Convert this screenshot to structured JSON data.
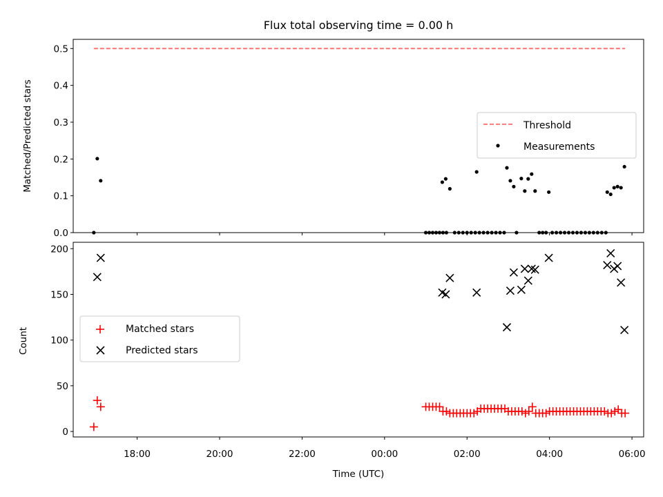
{
  "figure": {
    "title": "Flux total observing time = 0.00 h",
    "xlabel": "Time (UTC)"
  },
  "chart_data": [
    {
      "type": "scatter",
      "ylabel": "Matched/Predicted stars",
      "ylim": [
        0,
        0.525
      ],
      "yticks": [
        0.0,
        0.1,
        0.2,
        0.3,
        0.4,
        0.5
      ],
      "ytick_labels": [
        "0.0",
        "0.1",
        "0.2",
        "0.3",
        "0.4",
        "0.5"
      ],
      "legend_position": "center-right",
      "threshold": {
        "name": "Threshold",
        "value": 0.5,
        "x_start": "16:57",
        "x_end": "05:50",
        "color": "#ff6b6b",
        "style": "dashed"
      },
      "series": [
        {
          "name": "Measurements",
          "color": "#000000",
          "marker": "dot",
          "points": [
            [
              "16:57",
              0.0
            ],
            [
              "17:02",
              0.201
            ],
            [
              "17:07",
              0.141
            ],
            [
              "01:00",
              0.0
            ],
            [
              "01:05",
              0.0
            ],
            [
              "01:10",
              0.0
            ],
            [
              "01:15",
              0.0
            ],
            [
              "01:20",
              0.0
            ],
            [
              "01:25",
              0.0
            ],
            [
              "01:30",
              0.0
            ],
            [
              "01:24",
              0.137
            ],
            [
              "01:29",
              0.146
            ],
            [
              "01:35",
              0.119
            ],
            [
              "01:42",
              0.0
            ],
            [
              "01:48",
              0.0
            ],
            [
              "01:54",
              0.0
            ],
            [
              "02:00",
              0.0
            ],
            [
              "02:06",
              0.0
            ],
            [
              "02:12",
              0.0
            ],
            [
              "02:18",
              0.0
            ],
            [
              "02:14",
              0.165
            ],
            [
              "02:24",
              0.0
            ],
            [
              "02:30",
              0.0
            ],
            [
              "02:36",
              0.0
            ],
            [
              "02:42",
              0.0
            ],
            [
              "02:48",
              0.0
            ],
            [
              "02:54",
              0.0
            ],
            [
              "02:58",
              0.176
            ],
            [
              "03:03",
              0.141
            ],
            [
              "03:08",
              0.125
            ],
            [
              "03:12",
              0.0
            ],
            [
              "03:19",
              0.147
            ],
            [
              "03:24",
              0.113
            ],
            [
              "03:29",
              0.146
            ],
            [
              "03:34",
              0.159
            ],
            [
              "03:39",
              0.113
            ],
            [
              "03:45",
              0.0
            ],
            [
              "03:50",
              0.0
            ],
            [
              "03:55",
              0.0
            ],
            [
              "03:59",
              0.11
            ],
            [
              "04:04",
              0.0
            ],
            [
              "04:10",
              0.0
            ],
            [
              "04:16",
              0.0
            ],
            [
              "04:22",
              0.0
            ],
            [
              "04:28",
              0.0
            ],
            [
              "04:34",
              0.0
            ],
            [
              "04:40",
              0.0
            ],
            [
              "04:46",
              0.0
            ],
            [
              "04:52",
              0.0
            ],
            [
              "04:58",
              0.0
            ],
            [
              "05:04",
              0.0
            ],
            [
              "05:10",
              0.0
            ],
            [
              "05:16",
              0.0
            ],
            [
              "05:22",
              0.0
            ],
            [
              "05:24",
              0.11
            ],
            [
              "05:29",
              0.104
            ],
            [
              "05:34",
              0.122
            ],
            [
              "05:39",
              0.125
            ],
            [
              "05:44",
              0.122
            ],
            [
              "05:49",
              0.179
            ]
          ]
        }
      ]
    },
    {
      "type": "scatter",
      "ylabel": "Count",
      "ylim": [
        -6,
        207
      ],
      "yticks": [
        0,
        50,
        100,
        150,
        200
      ],
      "ytick_labels": [
        "0",
        "50",
        "100",
        "150",
        "200"
      ],
      "xlim": [
        "16:27",
        "06:17"
      ],
      "xticks": [
        "18:00",
        "20:00",
        "22:00",
        "00:00",
        "02:00",
        "04:00",
        "06:00"
      ],
      "legend_position": "center-left",
      "series": [
        {
          "name": "Matched stars",
          "color": "#ff0000",
          "marker": "plus",
          "points": [
            [
              "16:57",
              5
            ],
            [
              "17:02",
              34
            ],
            [
              "17:07",
              27
            ],
            [
              "01:00",
              27
            ],
            [
              "01:05",
              27
            ],
            [
              "01:10",
              27
            ],
            [
              "01:15",
              27
            ],
            [
              "01:20",
              27
            ],
            [
              "01:25",
              22
            ],
            [
              "01:30",
              22
            ],
            [
              "01:35",
              20
            ],
            [
              "01:40",
              20
            ],
            [
              "01:45",
              20
            ],
            [
              "01:50",
              20
            ],
            [
              "01:55",
              20
            ],
            [
              "02:00",
              20
            ],
            [
              "02:05",
              20
            ],
            [
              "02:10",
              20
            ],
            [
              "02:15",
              22
            ],
            [
              "02:20",
              25
            ],
            [
              "02:25",
              25
            ],
            [
              "02:30",
              25
            ],
            [
              "02:35",
              25
            ],
            [
              "02:40",
              25
            ],
            [
              "02:45",
              25
            ],
            [
              "02:50",
              25
            ],
            [
              "02:55",
              25
            ],
            [
              "03:00",
              22
            ],
            [
              "03:05",
              22
            ],
            [
              "03:10",
              22
            ],
            [
              "03:15",
              22
            ],
            [
              "03:20",
              22
            ],
            [
              "03:25",
              20
            ],
            [
              "03:30",
              22
            ],
            [
              "03:35",
              27
            ],
            [
              "03:40",
              20
            ],
            [
              "03:45",
              20
            ],
            [
              "03:50",
              20
            ],
            [
              "03:55",
              20
            ],
            [
              "04:00",
              22
            ],
            [
              "04:05",
              22
            ],
            [
              "04:10",
              22
            ],
            [
              "04:15",
              22
            ],
            [
              "04:20",
              22
            ],
            [
              "04:25",
              22
            ],
            [
              "04:30",
              22
            ],
            [
              "04:35",
              22
            ],
            [
              "04:40",
              22
            ],
            [
              "04:45",
              22
            ],
            [
              "04:50",
              22
            ],
            [
              "04:55",
              22
            ],
            [
              "05:00",
              22
            ],
            [
              "05:05",
              22
            ],
            [
              "05:10",
              22
            ],
            [
              "05:15",
              22
            ],
            [
              "05:20",
              22
            ],
            [
              "05:25",
              20
            ],
            [
              "05:30",
              20
            ],
            [
              "05:35",
              22
            ],
            [
              "05:40",
              24
            ],
            [
              "05:45",
              20
            ],
            [
              "05:50",
              20
            ]
          ]
        },
        {
          "name": "Predicted stars",
          "color": "#000000",
          "marker": "x",
          "points": [
            [
              "17:02",
              169
            ],
            [
              "17:07",
              190
            ],
            [
              "01:24",
              152
            ],
            [
              "01:29",
              150
            ],
            [
              "01:35",
              168
            ],
            [
              "02:14",
              152
            ],
            [
              "02:58",
              114
            ],
            [
              "03:03",
              154
            ],
            [
              "03:08",
              174
            ],
            [
              "03:19",
              155
            ],
            [
              "03:24",
              178
            ],
            [
              "03:29",
              165
            ],
            [
              "03:34",
              178
            ],
            [
              "03:39",
              177
            ],
            [
              "03:59",
              190
            ],
            [
              "05:24",
              182
            ],
            [
              "05:29",
              195
            ],
            [
              "05:34",
              178
            ],
            [
              "05:39",
              181
            ],
            [
              "05:44",
              163
            ],
            [
              "05:49",
              111
            ]
          ]
        }
      ]
    }
  ]
}
